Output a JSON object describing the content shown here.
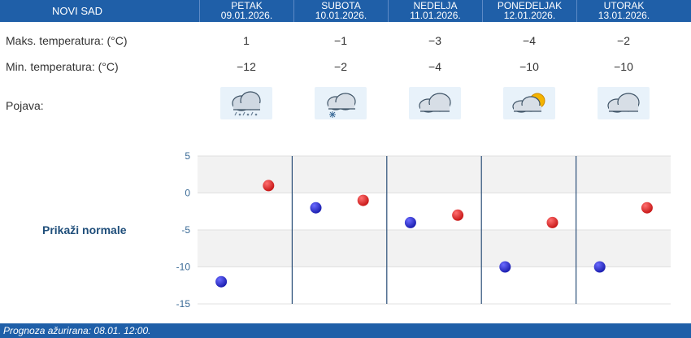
{
  "location": "NOVI SAD",
  "days": [
    {
      "name": "PETAK",
      "date": "09.01.2026.",
      "max": "1",
      "min": "−12",
      "icon": "snow-rain-cloud-icon"
    },
    {
      "name": "SUBOTA",
      "date": "10.01.2026.",
      "max": "−1",
      "min": "−2",
      "icon": "snow-cloud-icon"
    },
    {
      "name": "NEDELJA",
      "date": "11.01.2026.",
      "max": "−3",
      "min": "−4",
      "icon": "cloud-icon"
    },
    {
      "name": "PONEDELJAK",
      "date": "12.01.2026.",
      "max": "−4",
      "min": "−10",
      "icon": "partly-cloudy-icon"
    },
    {
      "name": "UTORAK",
      "date": "13.01.2026.",
      "max": "−2",
      "min": "−10",
      "icon": "cloud-icon"
    }
  ],
  "labels": {
    "max_temp": "Maks. temperatura: (°C)",
    "min_temp": "Min. temperatura: (°C)",
    "phenomenon": "Pojava:",
    "show_normals": "Prikaži normale"
  },
  "footer": "Prognoza ažurirana:  08.01. 12:00.",
  "colors": {
    "header": "#1f5fa8",
    "min_dot": "#1c1fb0",
    "max_dot": "#c81818"
  },
  "chart_data": {
    "type": "scatter",
    "categories": [
      "PETAK",
      "SUBOTA",
      "NEDELJA",
      "PONEDELJAK",
      "UTORAK"
    ],
    "series": [
      {
        "values": [
          -12,
          -2,
          -4,
          -10,
          -10
        ]
      },
      {
        "values": [
          1,
          -1,
          -3,
          -4,
          -2
        ]
      }
    ],
    "ylim": [
      -15,
      5
    ],
    "yticks": [
      "5",
      "0",
      "-5",
      "-10",
      "-15"
    ],
    "grid": true
  }
}
